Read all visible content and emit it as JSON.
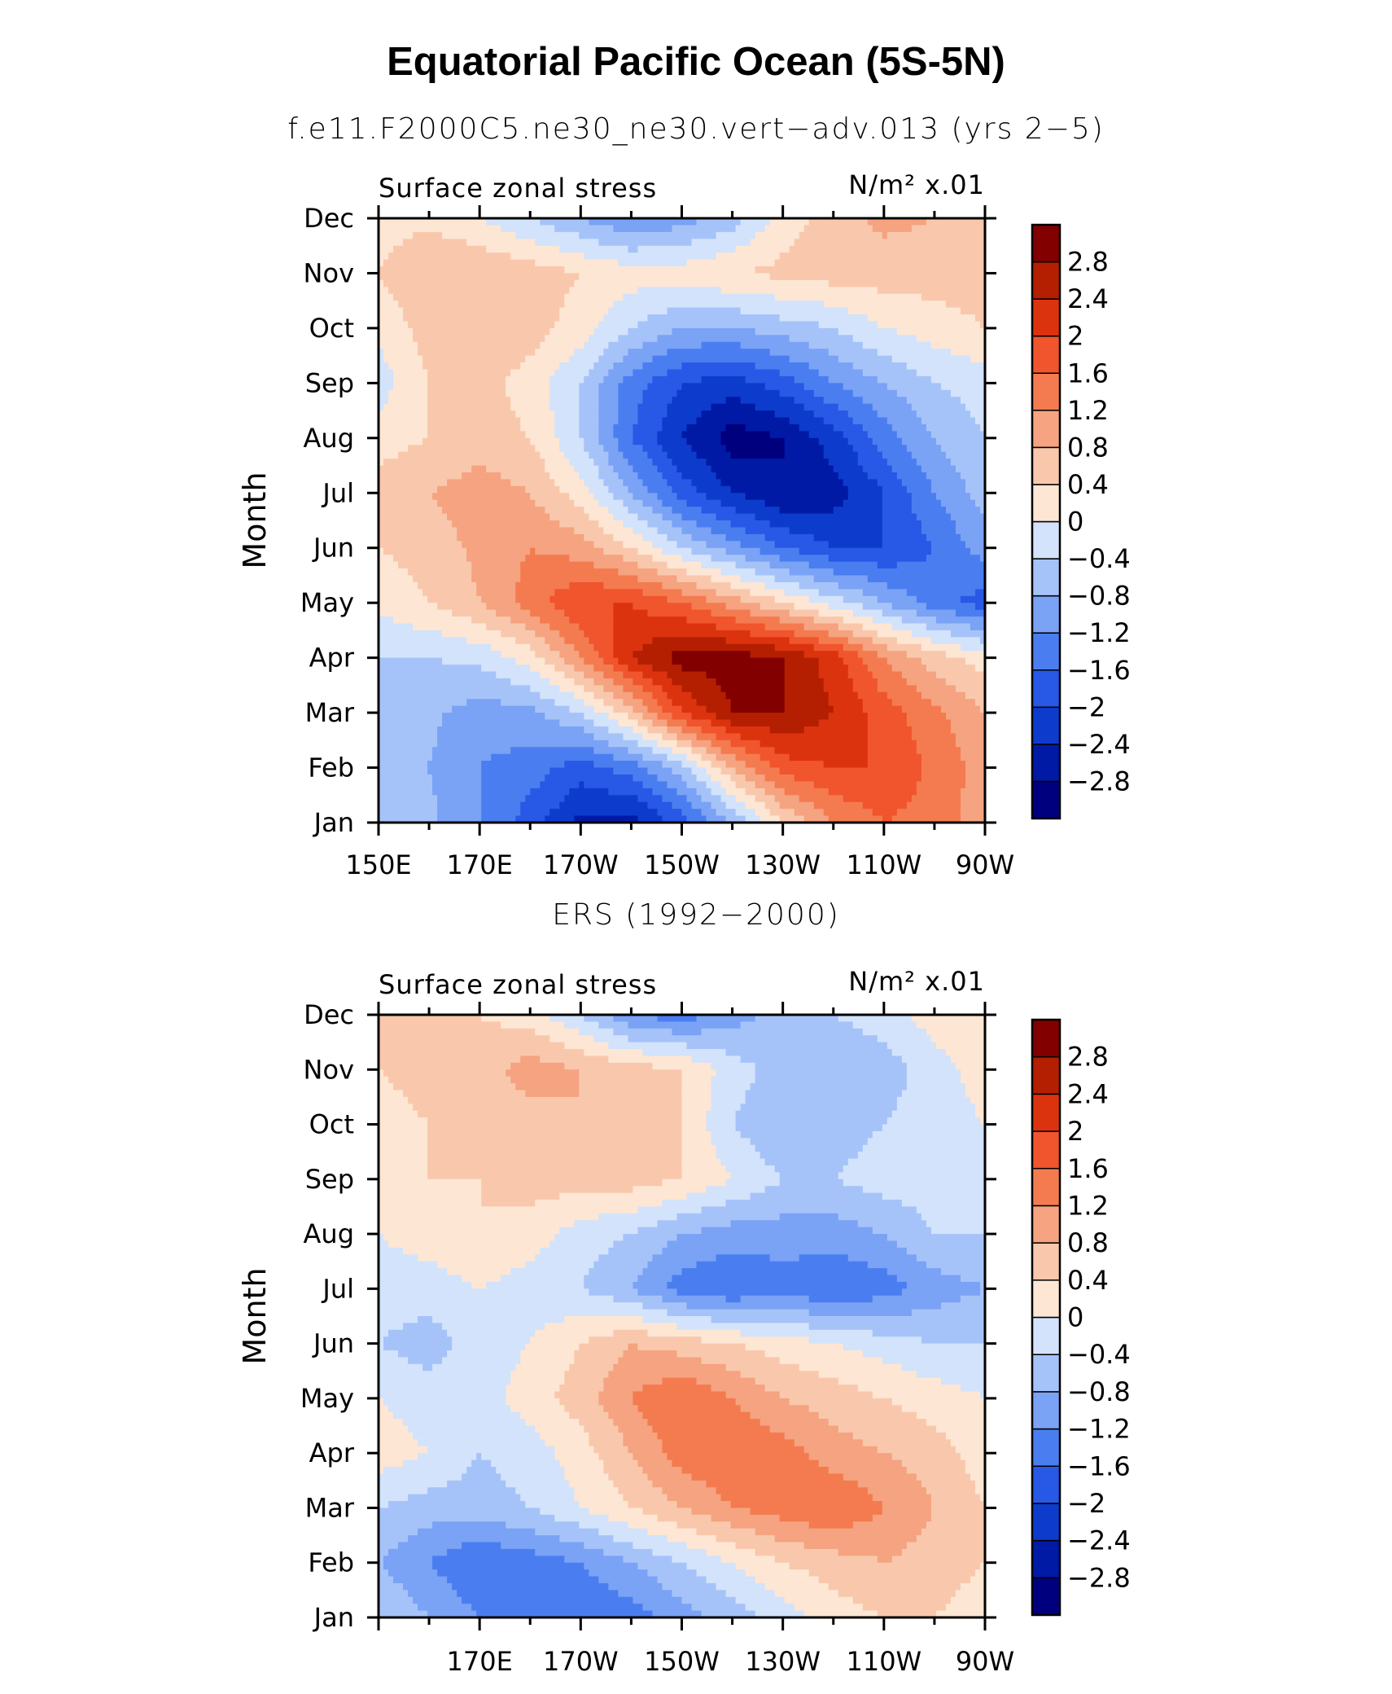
{
  "title": "Equatorial Pacific Ocean (5S-5N)",
  "colors": {
    "levels": [
      "#00007f",
      "#001aa6",
      "#0d3ccc",
      "#2758e6",
      "#4a7ef0",
      "#7aa2f5",
      "#a6c3f9",
      "#d2e3fb",
      "#fde6d4",
      "#f9c8ac",
      "#f5a380",
      "#f47b4f",
      "#f0552d",
      "#dc330f",
      "#b31f00",
      "#820000"
    ]
  },
  "colorbar_labels": [
    "2.8",
    "2.4",
    "2",
    "1.6",
    "1.2",
    "0.8",
    "0.4",
    "0",
    "−0.4",
    "−0.8",
    "−1.2",
    "−1.6",
    "−2",
    "−2.4",
    "−2.8"
  ],
  "panels": [
    {
      "title": "f.e11.F2000C5.ne30_ne30.vert−adv.013 (yrs 2−5)",
      "left_label": "Surface zonal stress",
      "units_label": "N/m² x.01",
      "ylabel": "Month",
      "months": [
        "Jan",
        "Feb",
        "Mar",
        "Apr",
        "May",
        "Jun",
        "Jul",
        "Aug",
        "Sep",
        "Oct",
        "Nov",
        "Dec"
      ],
      "xticks": [
        "150E",
        "170E",
        "170W",
        "150W",
        "130W",
        "110W",
        "90W"
      ]
    },
    {
      "title": "ERS (1992−2000)",
      "left_label": "Surface zonal stress",
      "units_label": "N/m² x.01",
      "ylabel": "Month",
      "months": [
        "Jan",
        "Feb",
        "Mar",
        "Apr",
        "May",
        "Jun",
        "Jul",
        "Aug",
        "Sep",
        "Oct",
        "Nov",
        "Dec"
      ],
      "xticks": [
        "170E",
        "170W",
        "150W",
        "130W",
        "110W",
        "90W"
      ]
    }
  ],
  "chart_data": [
    {
      "type": "heatmap",
      "title": "f.e11.F2000C5.ne30_ne30.vert−adv.013 (yrs 2−5)",
      "ylabel": "Month",
      "units": "N/m² x.01",
      "xlim_lon_east": [
        150,
        270
      ],
      "x": [
        150,
        160,
        170,
        180,
        190,
        200,
        210,
        220,
        230,
        240,
        250,
        260,
        270
      ],
      "y": [
        "Jan",
        "Feb",
        "Mar",
        "Apr",
        "May",
        "Jun",
        "Jul",
        "Aug",
        "Sep",
        "Oct",
        "Nov",
        "Dec"
      ],
      "levels": [
        -2.8,
        -2.4,
        -2,
        -1.6,
        -1.2,
        -0.8,
        -0.4,
        0,
        0.4,
        0.8,
        1.2,
        1.6,
        2,
        2.4,
        2.8
      ],
      "z": [
        [
          -0.5,
          -0.7,
          -1.2,
          -1.8,
          -2.5,
          -2.6,
          -1.8,
          -0.8,
          0.4,
          1.2,
          1.6,
          1.4,
          1.0
        ],
        [
          -0.6,
          -0.8,
          -1.2,
          -1.4,
          -1.8,
          -1.4,
          -0.6,
          0.8,
          1.8,
          2.0,
          2.0,
          1.5,
          1.0
        ],
        [
          -0.6,
          -0.7,
          -1.0,
          -0.9,
          -0.4,
          0.6,
          2.0,
          2.8,
          2.8,
          2.4,
          1.8,
          1.3,
          0.8
        ],
        [
          -0.4,
          -0.4,
          -0.3,
          0.2,
          1.2,
          2.4,
          3.0,
          3.0,
          2.8,
          2.2,
          1.2,
          0.6,
          0.2
        ],
        [
          0.1,
          0.4,
          0.8,
          1.4,
          2.0,
          2.0,
          1.6,
          1.0,
          0.4,
          -0.2,
          -0.8,
          -1.4,
          -1.8
        ],
        [
          0.4,
          0.6,
          0.9,
          1.2,
          1.0,
          0.4,
          -0.4,
          -1.0,
          -1.6,
          -2.0,
          -2.0,
          -1.6,
          -1.0
        ],
        [
          0.6,
          0.8,
          1.0,
          0.8,
          0.2,
          -0.8,
          -1.8,
          -2.4,
          -2.8,
          -2.6,
          -2.0,
          -1.2,
          -0.6
        ],
        [
          0.2,
          0.4,
          0.6,
          0.4,
          -0.4,
          -1.6,
          -2.4,
          -3.0,
          -2.8,
          -2.2,
          -1.4,
          -0.8,
          -0.4
        ],
        [
          -0.2,
          0.4,
          0.6,
          0.2,
          -0.4,
          -1.4,
          -2.0,
          -2.2,
          -1.8,
          -1.2,
          -0.8,
          -0.4,
          -0.2
        ],
        [
          0.1,
          0.6,
          0.8,
          0.6,
          0.2,
          -0.4,
          -0.8,
          -0.8,
          -0.6,
          -0.4,
          0.0,
          0.2,
          0.4
        ],
        [
          0.4,
          0.8,
          0.8,
          0.6,
          0.4,
          0.2,
          0.2,
          0.4,
          0.5,
          0.6,
          0.6,
          0.6,
          0.6
        ],
        [
          0.2,
          0.3,
          0.0,
          -0.4,
          -0.8,
          -1.2,
          -1.0,
          -0.6,
          0.2,
          0.6,
          0.9,
          0.8,
          0.4
        ]
      ]
    },
    {
      "type": "heatmap",
      "title": "ERS (1992−2000)",
      "ylabel": "Month",
      "units": "N/m² x.01",
      "xlim_lon_east": [
        150,
        270
      ],
      "x": [
        150,
        160,
        170,
        180,
        190,
        200,
        210,
        220,
        230,
        240,
        250,
        260,
        270
      ],
      "y": [
        "Jan",
        "Feb",
        "Mar",
        "Apr",
        "May",
        "Jun",
        "Jul",
        "Aug",
        "Sep",
        "Oct",
        "Nov",
        "Dec"
      ],
      "levels": [
        -2.8,
        -2.4,
        -2,
        -1.6,
        -1.2,
        -0.8,
        -0.4,
        0,
        0.4,
        0.8,
        1.2,
        1.6,
        2,
        2.4,
        2.8
      ],
      "z": [
        [
          -0.4,
          -0.8,
          -1.2,
          -1.4,
          -1.6,
          -1.4,
          -1.0,
          -0.6,
          -0.2,
          0.2,
          0.4,
          0.4,
          0.2
        ],
        [
          -0.8,
          -1.2,
          -1.6,
          -1.4,
          -1.2,
          -0.8,
          -0.4,
          0.0,
          0.4,
          0.6,
          0.8,
          0.6,
          0.4
        ],
        [
          -0.4,
          -0.6,
          -0.6,
          -0.4,
          0.0,
          0.4,
          0.8,
          1.2,
          1.4,
          1.6,
          1.2,
          0.8,
          0.4
        ],
        [
          0.2,
          0.0,
          -0.4,
          -0.2,
          0.2,
          0.8,
          1.4,
          1.6,
          1.4,
          1.0,
          0.8,
          0.6,
          0.2
        ],
        [
          0.0,
          -0.2,
          -0.2,
          0.2,
          0.6,
          1.2,
          1.6,
          1.2,
          0.8,
          0.6,
          0.4,
          0.2,
          0.0
        ],
        [
          -0.4,
          -0.6,
          -0.2,
          0.0,
          0.4,
          0.8,
          0.6,
          0.4,
          0.2,
          0.0,
          -0.2,
          -0.4,
          -0.4
        ],
        [
          -0.2,
          -0.2,
          0.0,
          -0.2,
          -0.4,
          -0.8,
          -1.4,
          -1.6,
          -1.4,
          -1.6,
          -1.4,
          -1.0,
          -0.8
        ],
        [
          0.0,
          0.2,
          0.4,
          0.2,
          -0.2,
          -0.4,
          -0.8,
          -1.0,
          -1.0,
          -1.0,
          -0.8,
          -0.4,
          -0.4
        ],
        [
          0.2,
          0.4,
          0.4,
          0.6,
          0.6,
          0.6,
          0.4,
          0.0,
          -0.4,
          -0.4,
          -0.2,
          -0.2,
          -0.2
        ],
        [
          0.2,
          0.4,
          0.6,
          0.6,
          0.8,
          0.6,
          0.4,
          -0.4,
          -0.8,
          -0.6,
          -0.4,
          -0.2,
          0.0
        ],
        [
          0.4,
          0.6,
          0.6,
          1.0,
          0.8,
          0.6,
          0.4,
          -0.2,
          -0.6,
          -0.8,
          -0.6,
          -0.2,
          0.2
        ],
        [
          0.6,
          0.6,
          0.4,
          0.2,
          -0.4,
          -1.2,
          -1.4,
          -1.0,
          -0.6,
          -0.4,
          -0.2,
          0.2,
          0.4
        ]
      ]
    }
  ]
}
